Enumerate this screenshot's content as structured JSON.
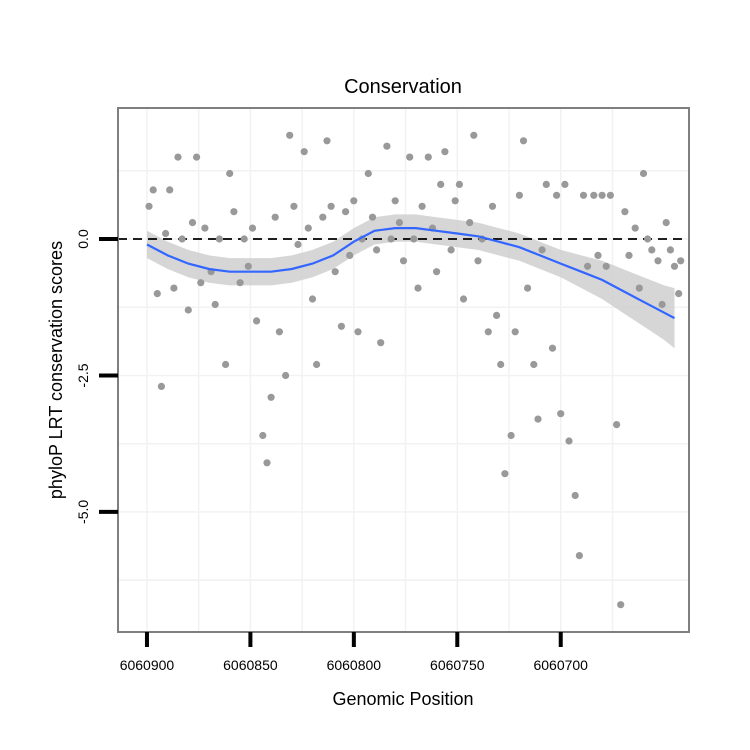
{
  "chart_data": {
    "type": "scatter",
    "title": "Conservation",
    "xlabel": "Genomic Position",
    "ylabel": "phyloP LRT conservation scores",
    "x_reversed": true,
    "xlim": [
      6060914,
      6060638
    ],
    "ylim": [
      -7.2,
      2.4
    ],
    "x_ticks": [
      6060900,
      6060850,
      6060800,
      6060750,
      6060700
    ],
    "x_tick_labels": [
      "6060900",
      "6060850",
      "6060800",
      "6060750",
      "6060700"
    ],
    "y_ticks": [
      0.0,
      -2.5,
      -5.0
    ],
    "y_tick_labels": [
      "0.0",
      "-2.5",
      "-5.0"
    ],
    "reference_line": {
      "y": 0,
      "style": "dashed"
    },
    "grid": true,
    "colors": {
      "points": "#999999",
      "smooth_line": "#3366ff",
      "confidence_band": "#cccccc",
      "panel_border": "#7f7f7f",
      "grid": "#f2f2f2"
    },
    "points": {
      "name": "",
      "x": [
        6060899,
        6060897,
        6060895,
        6060893,
        6060891,
        6060889,
        6060887,
        6060885,
        6060883,
        6060880,
        6060878,
        6060876,
        6060874,
        6060872,
        6060869,
        6060867,
        6060865,
        6060862,
        6060860,
        6060858,
        6060855,
        6060853,
        6060851,
        6060849,
        6060847,
        6060844,
        6060842,
        6060840,
        6060838,
        6060836,
        6060833,
        6060831,
        6060829,
        6060827,
        6060824,
        6060822,
        6060820,
        6060818,
        6060815,
        6060813,
        6060811,
        6060809,
        6060806,
        6060804,
        6060802,
        6060800,
        6060798,
        6060796,
        6060793,
        6060791,
        6060789,
        6060787,
        6060784,
        6060782,
        6060780,
        6060778,
        6060776,
        6060773,
        6060771,
        6060769,
        6060767,
        6060764,
        6060762,
        6060760,
        6060758,
        6060756,
        6060753,
        6060751,
        6060749,
        6060747,
        6060744,
        6060742,
        6060740,
        6060738,
        6060735,
        6060733,
        6060731,
        6060729,
        6060727,
        6060724,
        6060722,
        6060720,
        6060718,
        6060716,
        6060713,
        6060711,
        6060709,
        6060707,
        6060704,
        6060702,
        6060700,
        6060698,
        6060696,
        6060693,
        6060691,
        6060689,
        6060687,
        6060684,
        6060682,
        6060680,
        6060678,
        6060676,
        6060673,
        6060671,
        6060669,
        6060667,
        6060664,
        6060662,
        6060660,
        6060658,
        6060656,
        6060653,
        6060651,
        6060649,
        6060647,
        6060645,
        6060643,
        6060642
      ],
      "y": [
        0.6,
        0.9,
        -1.0,
        -2.7,
        0.1,
        0.9,
        -0.9,
        1.5,
        0.0,
        -1.3,
        0.3,
        1.5,
        -0.8,
        0.2,
        -0.6,
        -1.2,
        0.0,
        -2.3,
        1.2,
        0.5,
        -0.8,
        0.0,
        -0.5,
        0.2,
        -1.5,
        -3.6,
        -4.1,
        -2.9,
        0.4,
        -1.7,
        -2.5,
        1.9,
        0.6,
        -0.1,
        1.6,
        0.2,
        -1.1,
        -2.3,
        0.4,
        1.8,
        0.6,
        -0.6,
        -1.6,
        0.5,
        -0.3,
        0.7,
        -1.7,
        0.0,
        1.2,
        0.4,
        -0.2,
        -1.9,
        1.7,
        0.0,
        0.7,
        0.3,
        -0.4,
        1.5,
        0.0,
        -0.9,
        0.6,
        1.5,
        0.2,
        -0.6,
        1.0,
        1.6,
        -0.2,
        0.7,
        1.0,
        -1.1,
        0.3,
        1.9,
        -0.4,
        0.0,
        -1.7,
        0.6,
        -1.4,
        -2.3,
        -4.3,
        -3.6,
        -1.7,
        0.8,
        1.8,
        -0.9,
        -2.3,
        -3.3,
        -0.2,
        1.0,
        -2.0,
        0.8,
        -3.2,
        1.0,
        -3.7,
        -4.7,
        -5.8,
        0.8,
        -0.5,
        0.8,
        -0.3,
        0.8,
        -0.5,
        0.8,
        -3.4,
        -6.7,
        0.5,
        -0.3,
        0.2,
        -0.9,
        1.2,
        0.0,
        -0.2,
        -0.4,
        -1.2,
        0.3,
        -0.2,
        -0.5,
        -1.0,
        -0.4
      ]
    },
    "smooth": {
      "x": [
        6060900,
        6060890,
        6060880,
        6060870,
        6060860,
        6060850,
        6060840,
        6060830,
        6060820,
        6060810,
        6060800,
        6060790,
        6060780,
        6060770,
        6060760,
        6060750,
        6060740,
        6060730,
        6060720,
        6060710,
        6060700,
        6060690,
        6060680,
        6060670,
        6060660,
        6060650,
        6060645
      ],
      "y": [
        -0.1,
        -0.3,
        -0.45,
        -0.55,
        -0.6,
        -0.6,
        -0.6,
        -0.55,
        -0.45,
        -0.3,
        -0.05,
        0.15,
        0.2,
        0.2,
        0.15,
        0.1,
        0.05,
        -0.05,
        -0.15,
        -0.3,
        -0.45,
        -0.6,
        -0.75,
        -0.95,
        -1.15,
        -1.35,
        -1.45
      ],
      "upper": [
        0.15,
        -0.05,
        -0.2,
        -0.3,
        -0.35,
        -0.35,
        -0.35,
        -0.3,
        -0.2,
        -0.05,
        0.2,
        0.4,
        0.45,
        0.45,
        0.4,
        0.35,
        0.3,
        0.2,
        0.1,
        -0.05,
        -0.2,
        -0.3,
        -0.4,
        -0.55,
        -0.7,
        -0.85,
        -0.9
      ],
      "lower": [
        -0.35,
        -0.55,
        -0.7,
        -0.8,
        -0.85,
        -0.85,
        -0.85,
        -0.8,
        -0.7,
        -0.55,
        -0.3,
        -0.1,
        -0.05,
        -0.05,
        -0.1,
        -0.15,
        -0.2,
        -0.3,
        -0.4,
        -0.55,
        -0.7,
        -0.9,
        -1.1,
        -1.35,
        -1.6,
        -1.85,
        -2.0
      ]
    }
  }
}
